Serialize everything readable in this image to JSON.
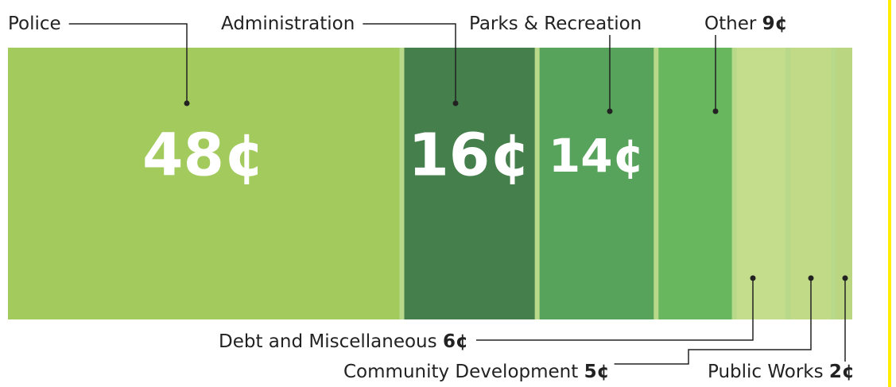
{
  "chart_data": {
    "type": "stacked-bar",
    "categories": [
      "Police",
      "Administration",
      "Parks & Recreation",
      "Other",
      "Debt and Miscellaneous",
      "Community Development",
      "Public Works"
    ],
    "values": [
      48,
      16,
      14,
      9,
      6,
      5,
      2
    ],
    "value_labels": [
      "48¢",
      "16¢",
      "14¢",
      "9¢",
      "6¢",
      "5¢",
      "2¢"
    ],
    "colors": [
      "#a0c95a",
      "#3e7a48",
      "#52a05a",
      "#63b55d",
      "#c4dd8c",
      "#c0da88",
      "#b9d67f"
    ]
  }
}
